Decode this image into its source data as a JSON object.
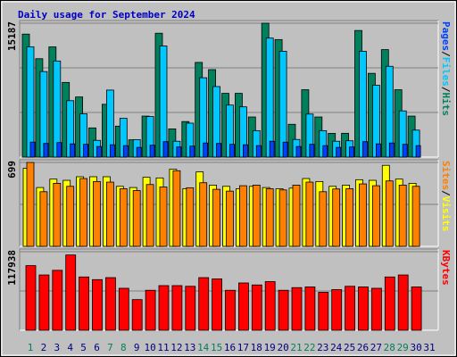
{
  "chart_data": [
    {
      "type": "bar",
      "title": "Daily usage for September 2024",
      "legend_separator": "/",
      "ylim": [
        0,
        15187
      ],
      "yticks": [
        15187
      ],
      "series": [
        {
          "name": "Hits",
          "color": "#00805c",
          "values": [
            13950,
            11160,
            12500,
            8470,
            6820,
            3310,
            5990,
            3510,
            1960,
            4650,
            14050,
            3200,
            4030,
            10740,
            9920,
            7230,
            7230,
            4550,
            15187,
            13330,
            3720,
            7640,
            4550,
            2690,
            2700,
            14360,
            9500,
            12190,
            7640,
            4650,
            null
          ]
        },
        {
          "name": "Files",
          "color": "#00c8ff",
          "values": [
            12500,
            9700,
            10900,
            6400,
            4900,
            1900,
            7600,
            4400,
            1980,
            4600,
            12600,
            1800,
            3850,
            9000,
            8000,
            5900,
            5700,
            3000,
            13500,
            12000,
            2000,
            4880,
            3000,
            1800,
            1850,
            12000,
            8150,
            10300,
            5240,
            3060,
            null
          ]
        },
        {
          "name": "Pages",
          "color": "#0040ff",
          "values": [
            1700,
            1550,
            1650,
            1500,
            1450,
            1200,
            1400,
            1300,
            1100,
            1350,
            1750,
            1150,
            1250,
            1600,
            1550,
            1450,
            1400,
            1300,
            1800,
            1700,
            1200,
            1450,
            1300,
            1100,
            1150,
            1750,
            1500,
            1600,
            1450,
            1300,
            null
          ]
        }
      ]
    },
    {
      "type": "bar",
      "legend_separator": "/",
      "ylim": [
        0,
        699
      ],
      "yticks": [
        699
      ],
      "series": [
        {
          "name": "Visits",
          "color": "#ffff00",
          "values": [
            650,
            490,
            560,
            550,
            580,
            580,
            580,
            500,
            490,
            575,
            570,
            642,
            480,
            620,
            510,
            500,
            480,
            500,
            490,
            480,
            485,
            565,
            540,
            500,
            510,
            555,
            550,
            675,
            560,
            525,
            null
          ]
        },
        {
          "name": "Sites",
          "color": "#ff8000",
          "values": [
            699,
            455,
            525,
            500,
            565,
            540,
            535,
            480,
            465,
            515,
            495,
            630,
            488,
            530,
            475,
            460,
            505,
            510,
            480,
            470,
            510,
            535,
            455,
            478,
            480,
            520,
            505,
            545,
            510,
            500,
            null
          ]
        }
      ]
    },
    {
      "type": "bar",
      "legend_separator": "/",
      "ylim": [
        0,
        117938
      ],
      "yticks": [
        117938
      ],
      "categories": [
        "1",
        "2",
        "3",
        "4",
        "5",
        "6",
        "7",
        "8",
        "9",
        "10",
        "11",
        "12",
        "13",
        "14",
        "15",
        "16",
        "17",
        "18",
        "19",
        "20",
        "21",
        "22",
        "23",
        "24",
        "25",
        "26",
        "27",
        "28",
        "29",
        "30",
        "31"
      ],
      "label_colors": [
        "#00805c",
        "#000080",
        "#000080",
        "#000080",
        "#000080",
        "#000080",
        "#00805c",
        "#00805c",
        "#000080",
        "#000080",
        "#000080",
        "#000080",
        "#000080",
        "#00805c",
        "#00805c",
        "#000080",
        "#000080",
        "#000080",
        "#000080",
        "#000080",
        "#00805c",
        "#00805c",
        "#000080",
        "#000080",
        "#000080",
        "#000080",
        "#000080",
        "#00805c",
        "#00805c",
        "#000080",
        "#000080"
      ],
      "series": [
        {
          "name": "KBytes",
          "color": "#ff0000",
          "values": [
            97000,
            83000,
            90000,
            113000,
            80000,
            76000,
            79000,
            63000,
            46000,
            60000,
            67000,
            67000,
            66000,
            79000,
            77000,
            60000,
            71000,
            68000,
            73000,
            60000,
            64000,
            65000,
            57000,
            61000,
            66000,
            65000,
            63000,
            80000,
            83000,
            65000,
            null
          ]
        }
      ]
    }
  ]
}
